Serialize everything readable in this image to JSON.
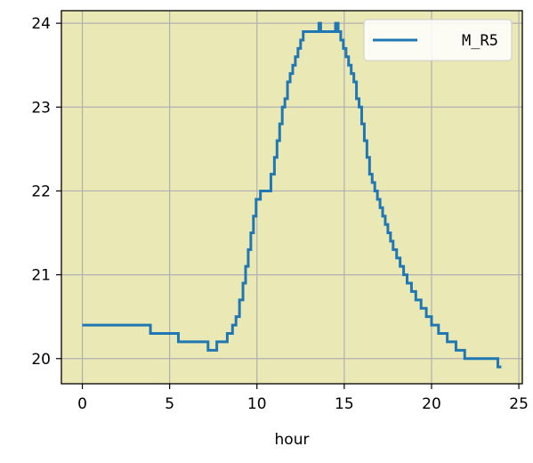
{
  "chart_data": {
    "type": "line",
    "title": "",
    "xlabel": "hour",
    "ylabel": "",
    "xlim": [
      -1.2,
      25.2
    ],
    "ylim": [
      19.7,
      24.15
    ],
    "xticks": [
      0,
      5,
      10,
      15,
      20,
      25
    ],
    "yticks": [
      20,
      21,
      22,
      23,
      24
    ],
    "xtick_labels": [
      "0",
      "5",
      "10",
      "15",
      "20",
      "25"
    ],
    "ytick_labels": [
      "20",
      "21",
      "22",
      "23",
      "24"
    ],
    "grid": true,
    "legend_position": "top-right",
    "background_color": "#eae8b4",
    "series": [
      {
        "name": "M_R5",
        "color": "#1f77b4",
        "step": true,
        "x": [
          0,
          3.9,
          5.5,
          7.2,
          7.7,
          8.3,
          8.6,
          8.8,
          9.0,
          9.2,
          9.35,
          9.5,
          9.65,
          9.8,
          9.95,
          10.2,
          10.8,
          11.0,
          11.15,
          11.3,
          11.45,
          11.6,
          11.75,
          11.9,
          12.05,
          12.2,
          12.35,
          12.5,
          12.65,
          12.8,
          12.95,
          13.1,
          13.3,
          13.55,
          13.65,
          13.8,
          14.5,
          14.65,
          14.8,
          14.95,
          15.1,
          15.25,
          15.4,
          15.55,
          15.7,
          15.85,
          16.0,
          16.15,
          16.3,
          16.45,
          16.6,
          16.75,
          16.9,
          17.05,
          17.2,
          17.35,
          17.5,
          17.65,
          17.8,
          18.0,
          18.2,
          18.4,
          18.6,
          18.85,
          19.1,
          19.4,
          19.7,
          20.0,
          20.4,
          20.9,
          21.4,
          21.9,
          22.3,
          22.8,
          23.3,
          23.8,
          24.0
        ],
        "values": [
          20.4,
          20.3,
          20.2,
          20.1,
          20.2,
          20.3,
          20.4,
          20.5,
          20.7,
          20.9,
          21.1,
          21.3,
          21.5,
          21.7,
          21.9,
          22.0,
          22.2,
          22.4,
          22.6,
          22.8,
          23.0,
          23.1,
          23.3,
          23.4,
          23.5,
          23.6,
          23.7,
          23.8,
          23.9,
          23.9,
          23.9,
          23.9,
          23.9,
          24.0,
          23.9,
          23.9,
          24.0,
          23.9,
          23.8,
          23.7,
          23.6,
          23.5,
          23.4,
          23.3,
          23.1,
          23.0,
          22.8,
          22.6,
          22.4,
          22.2,
          22.1,
          22.0,
          21.9,
          21.8,
          21.7,
          21.6,
          21.5,
          21.4,
          21.3,
          21.2,
          21.1,
          21.0,
          20.9,
          20.8,
          20.7,
          20.6,
          20.5,
          20.4,
          20.3,
          20.2,
          20.1,
          20.0,
          20.0,
          20.0,
          20.0,
          19.9,
          19.9
        ]
      }
    ]
  }
}
